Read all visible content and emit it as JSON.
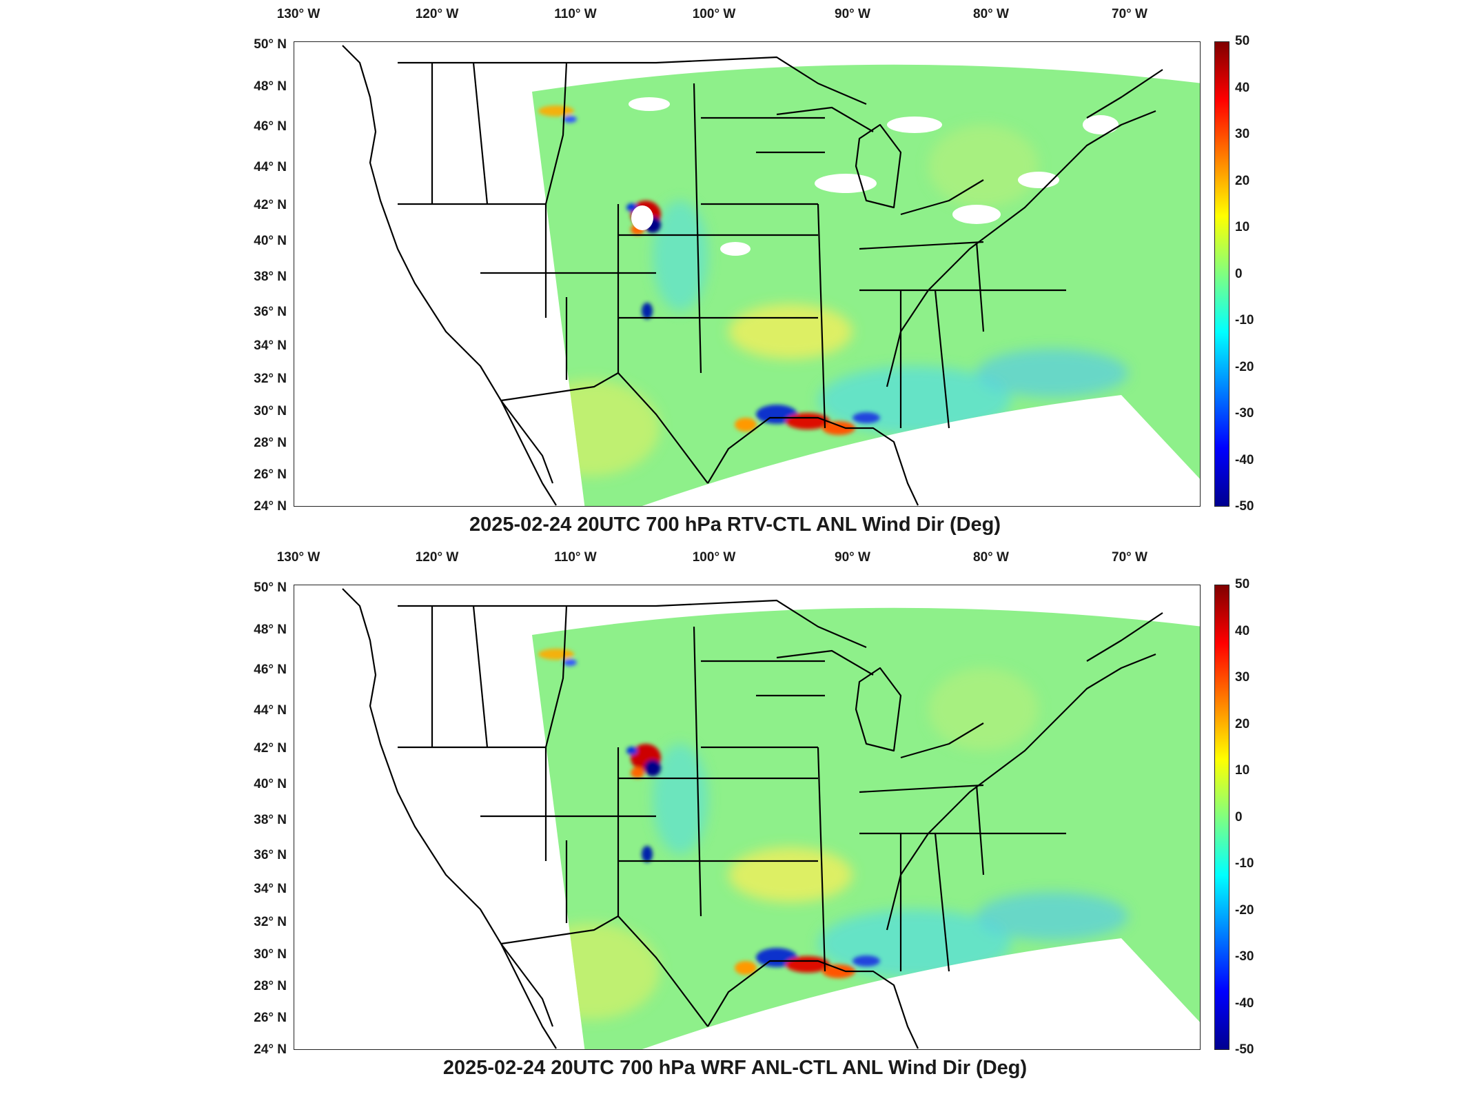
{
  "lon_ticks": [
    "130° W",
    "120° W",
    "110° W",
    "100° W",
    "90° W",
    "80° W",
    "70° W"
  ],
  "lat_ticks": [
    "50° N",
    "48° N",
    "46° N",
    "44° N",
    "42° N",
    "40° N",
    "38° N",
    "36° N",
    "34° N",
    "32° N",
    "30° N",
    "28° N",
    "26° N",
    "24° N"
  ],
  "colorbar": {
    "ticks": [
      "50",
      "40",
      "30",
      "20",
      "10",
      "0",
      "-10",
      "-20",
      "-30",
      "-40",
      "-50"
    ],
    "min": -50,
    "max": 50,
    "colormap": "jet",
    "colors": [
      "#00008f",
      "#0000ff",
      "#0080ff",
      "#00ffff",
      "#80ff80",
      "#ffff00",
      "#ff8000",
      "#ff0000",
      "#800000"
    ]
  },
  "panels": [
    {
      "title": "2025-02-24 20UTC 700 hPa RTV-CTL ANL Wind Dir (Deg)"
    },
    {
      "title": "2025-02-24 20UTC 700 hPa WRF ANL-CTL ANL Wind Dir (Deg)"
    }
  ]
}
